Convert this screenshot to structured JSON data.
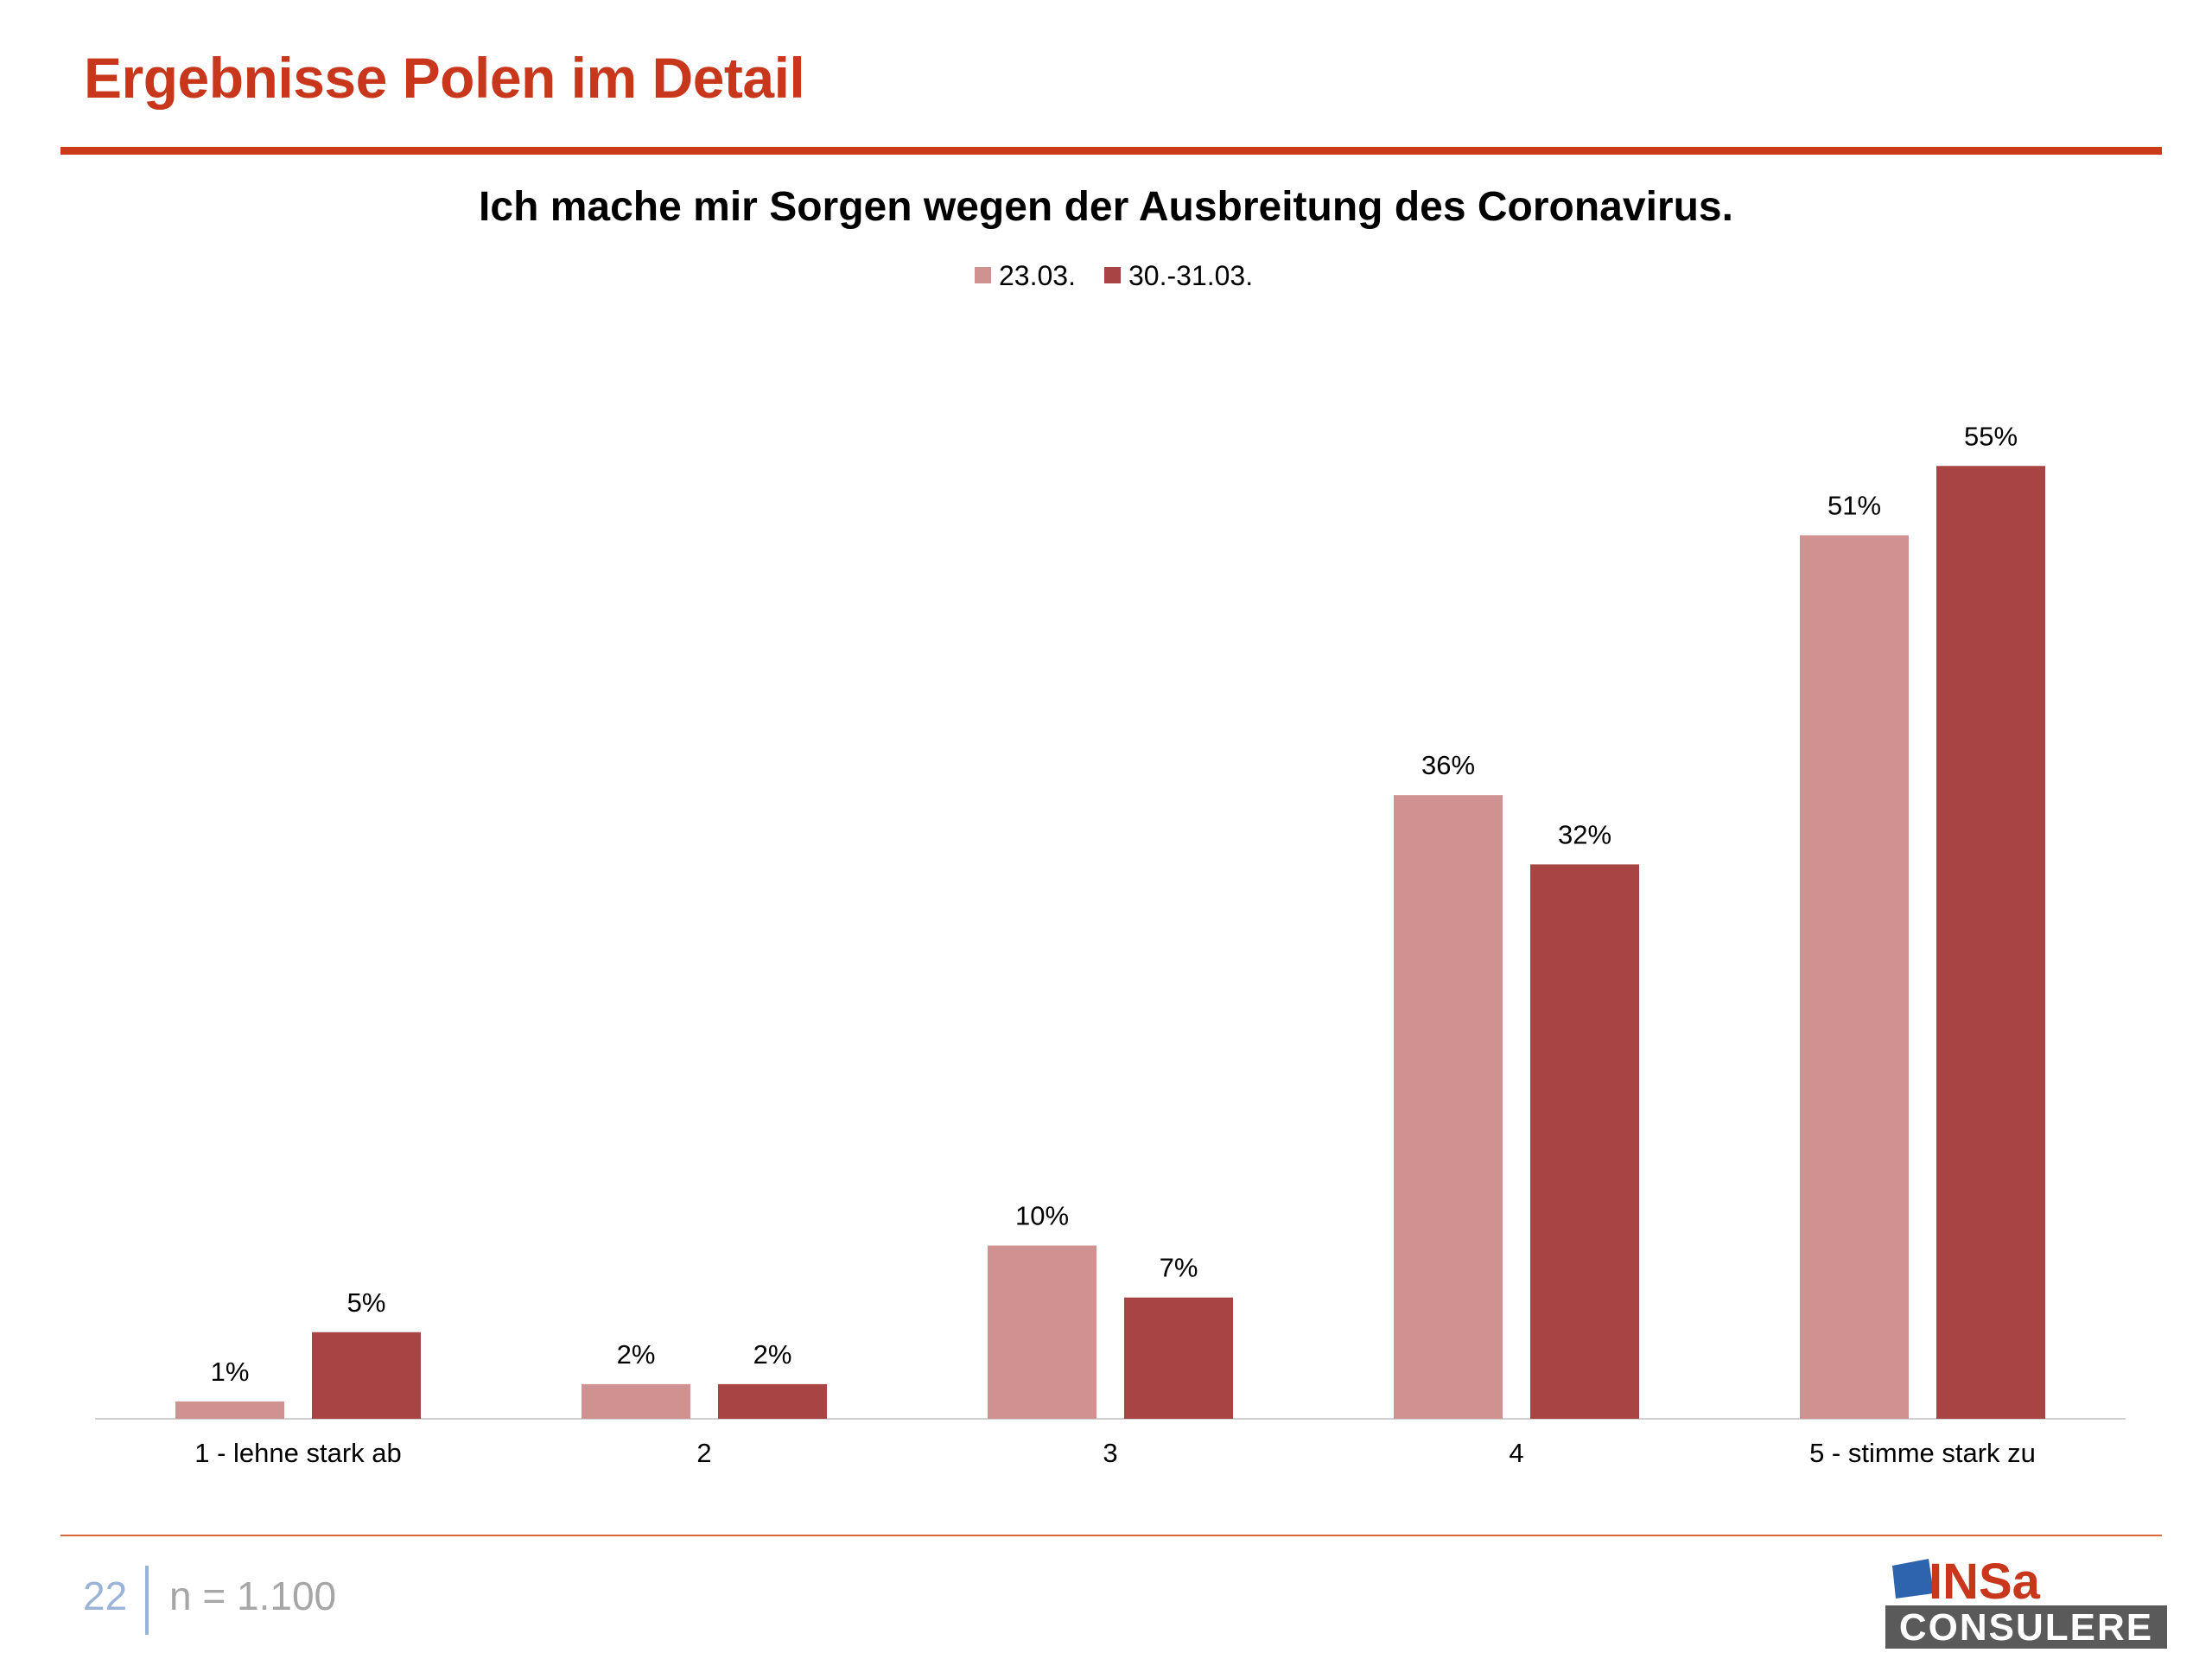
{
  "slide": {
    "title": "Ergebnisse Polen im Detail",
    "page_number": "22",
    "sample_size": "n = 1.100",
    "logo_text_top": "INSa",
    "logo_text_bottom": "CONSULERE"
  },
  "colors": {
    "accent": "#cc3a1a",
    "series_1": "#d09191",
    "series_2": "#a84444",
    "page_number": "#9ab3d8",
    "footer_text": "#a6a6a6"
  },
  "chart_data": {
    "type": "bar",
    "title": "Ich mache mir Sorgen wegen der Ausbreitung des Coronavirus.",
    "categories": [
      "1 - lehne stark ab",
      "2",
      "3",
      "4",
      "5 - stimme stark zu"
    ],
    "series": [
      {
        "name": "23.03.",
        "values": [
          1,
          2,
          10,
          36,
          51
        ],
        "color": "#d09191"
      },
      {
        "name": "30.-31.03.",
        "values": [
          5,
          2,
          7,
          32,
          55
        ],
        "color": "#a84444"
      }
    ],
    "value_suffix": "%",
    "ylim": [
      0,
      55
    ],
    "grid": false,
    "legend": "top-center",
    "data_labels": true
  }
}
